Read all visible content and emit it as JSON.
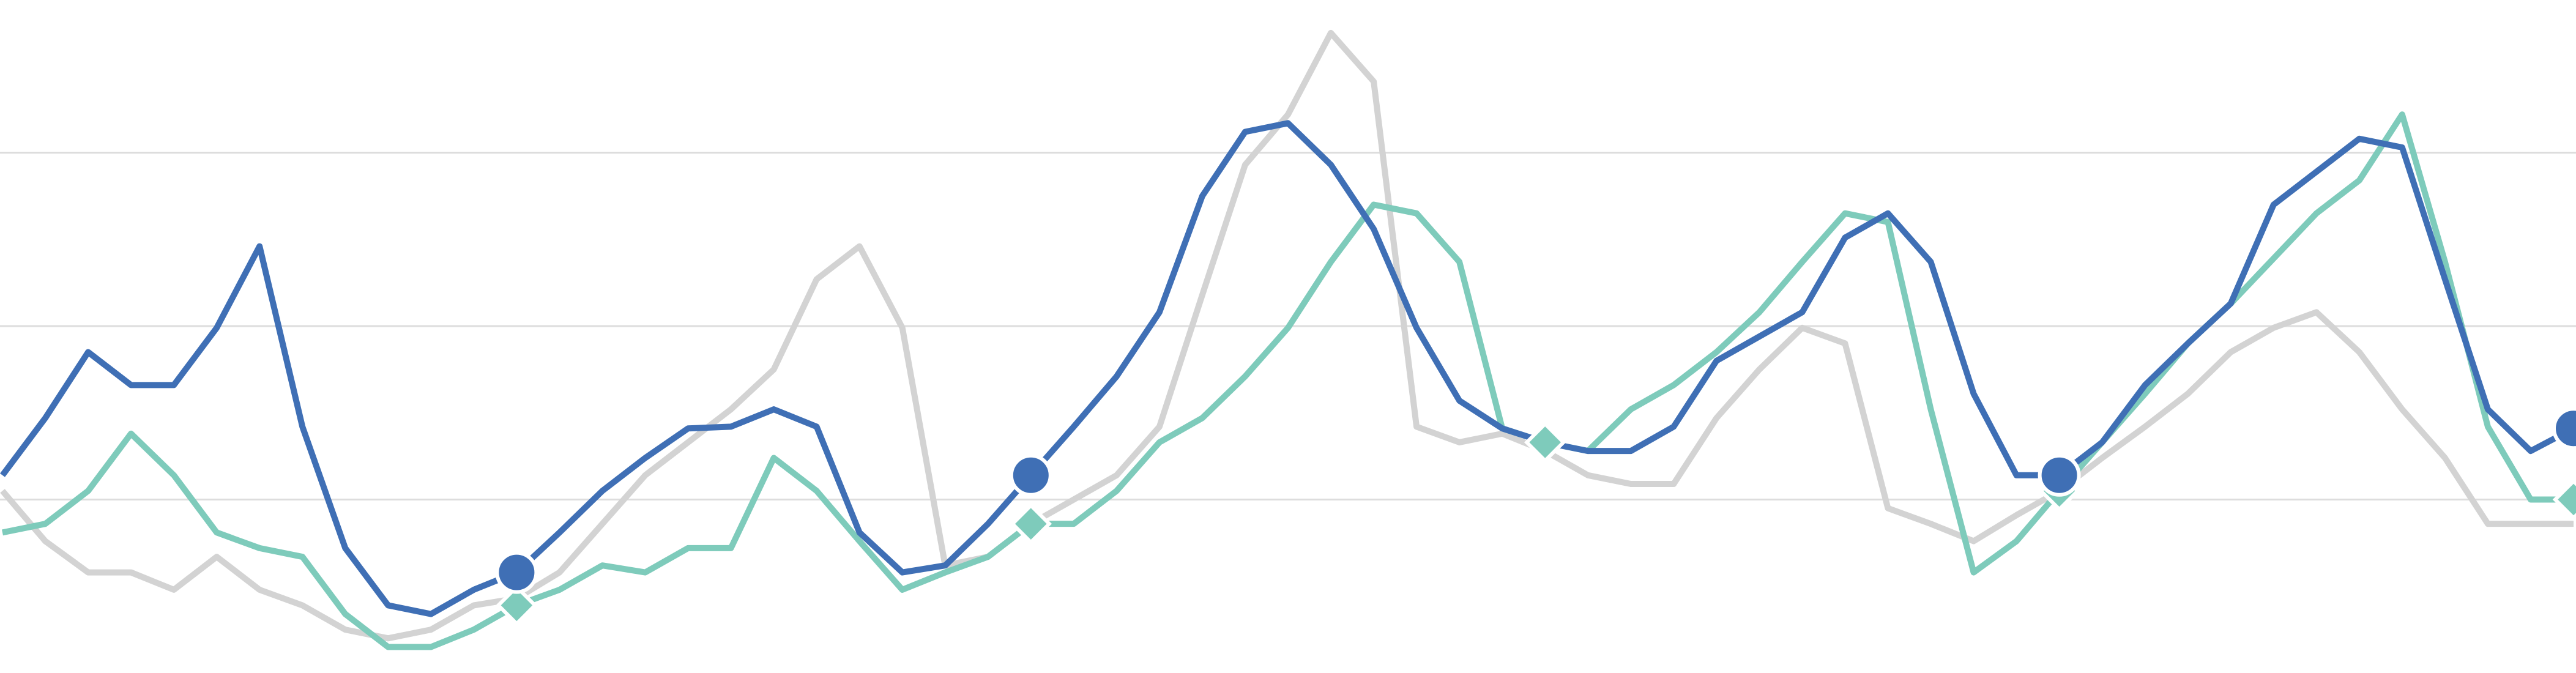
{
  "chart_data": {
    "type": "line",
    "ylim": [
      0,
      3.88
    ],
    "yticks": [
      1,
      2,
      3
    ],
    "grid": true,
    "grid_color": "#dddddd",
    "series": [
      {
        "color": "#d3d3d3",
        "values": [
          1.05,
          0.76,
          0.58,
          0.58,
          0.48,
          0.67,
          0.48,
          0.39,
          0.25,
          0.2,
          0.25,
          0.39,
          0.43,
          0.58,
          0.86,
          1.14,
          1.33,
          1.52,
          1.75,
          2.27,
          2.46,
          1.99,
          0.62,
          0.67,
          0.86,
          1.0,
          1.14,
          1.42,
          2.18,
          2.93,
          3.22,
          3.69,
          3.41,
          1.42,
          1.33,
          1.38,
          1.28,
          1.14,
          1.09,
          1.09,
          1.47,
          1.75,
          1.99,
          1.9,
          0.95,
          0.86,
          0.76,
          0.91,
          1.05,
          1.24,
          1.42,
          1.61,
          1.85,
          1.99,
          2.08,
          1.85,
          1.52,
          1.24,
          0.86,
          0.86,
          0.86
        ]
      },
      {
        "color": "#7ecbbb",
        "marker": "diamond",
        "marker_indices": [
          12,
          24,
          36,
          48,
          60
        ],
        "values": [
          0.81,
          0.86,
          1.05,
          1.38,
          1.14,
          0.81,
          0.72,
          0.67,
          0.34,
          0.15,
          0.15,
          0.25,
          0.39,
          0.48,
          0.62,
          0.58,
          0.72,
          0.72,
          1.24,
          1.05,
          0.76,
          0.48,
          0.58,
          0.67,
          0.86,
          0.86,
          1.05,
          1.33,
          1.47,
          1.71,
          1.99,
          2.37,
          2.7,
          2.65,
          2.37,
          1.41,
          1.33,
          1.28,
          1.52,
          1.66,
          1.85,
          2.08,
          2.37,
          2.65,
          2.6,
          1.52,
          0.58,
          0.76,
          1.05,
          1.33,
          1.61,
          1.9,
          2.13,
          2.39,
          2.65,
          2.84,
          3.22,
          2.37,
          1.42,
          1.0,
          1.0
        ]
      },
      {
        "color": "#3f6fb5",
        "marker": "circle",
        "marker_indices": [
          12,
          24,
          48,
          60
        ],
        "values": [
          1.14,
          1.47,
          1.85,
          1.66,
          1.66,
          1.99,
          2.46,
          1.42,
          0.72,
          0.39,
          0.34,
          0.48,
          0.58,
          0.81,
          1.05,
          1.24,
          1.41,
          1.42,
          1.52,
          1.42,
          0.81,
          0.58,
          0.62,
          0.86,
          1.14,
          1.42,
          1.71,
          2.08,
          2.75,
          3.12,
          3.17,
          2.93,
          2.56,
          1.99,
          1.57,
          1.41,
          1.33,
          1.28,
          1.28,
          1.42,
          1.8,
          1.94,
          2.08,
          2.51,
          2.65,
          2.37,
          1.61,
          1.14,
          1.14,
          1.33,
          1.66,
          1.9,
          2.13,
          2.7,
          2.89,
          3.08,
          3.03,
          2.27,
          1.52,
          1.28,
          1.41
        ]
      }
    ]
  }
}
